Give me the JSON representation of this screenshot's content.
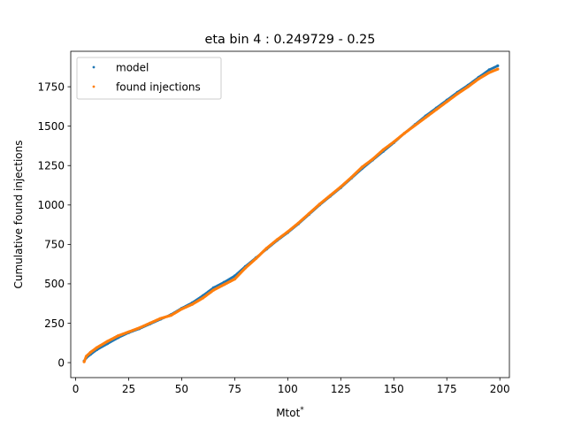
{
  "chart_data": {
    "type": "scatter",
    "title": "eta bin 4 : 0.249729 - 0.25",
    "xlabel": "Mtot",
    "xlabel_superscript": "*",
    "ylabel": "Cumulative found injections",
    "xlim": [
      -2.3,
      204.5
    ],
    "ylim": [
      -95,
      1975
    ],
    "xticks": [
      0,
      25,
      50,
      75,
      100,
      125,
      150,
      175,
      200
    ],
    "yticks": [
      0,
      250,
      500,
      750,
      1000,
      1250,
      1500,
      1750
    ],
    "xtick_labels": [
      "0",
      "25",
      "50",
      "75",
      "100",
      "125",
      "150",
      "175",
      "200"
    ],
    "ytick_labels": [
      "0",
      "250",
      "500",
      "750",
      "1000",
      "1250",
      "1500",
      "1750"
    ],
    "grid": false,
    "legend_position": "top-left",
    "series": [
      {
        "name": "model",
        "color": "#1f77b4",
        "x": [
          4,
          5,
          7,
          10,
          15,
          20,
          25,
          30,
          35,
          40,
          45,
          50,
          55,
          60,
          65,
          70,
          75,
          80,
          85,
          90,
          95,
          100,
          105,
          110,
          115,
          120,
          125,
          130,
          135,
          140,
          145,
          150,
          155,
          160,
          165,
          170,
          175,
          180,
          185,
          190,
          195,
          199
        ],
        "y": [
          10,
          30,
          52,
          82,
          120,
          158,
          190,
          215,
          245,
          275,
          305,
          345,
          380,
          425,
          475,
          510,
          550,
          610,
          665,
          720,
          775,
          825,
          880,
          940,
          1000,
          1055,
          1110,
          1170,
          1230,
          1285,
          1340,
          1395,
          1455,
          1510,
          1565,
          1615,
          1665,
          1715,
          1760,
          1810,
          1858,
          1883
        ]
      },
      {
        "name": "found injections",
        "color": "#ff7f0e",
        "x": [
          4,
          5,
          7,
          10,
          15,
          20,
          25,
          30,
          35,
          40,
          45,
          50,
          55,
          60,
          65,
          70,
          75,
          80,
          85,
          90,
          95,
          100,
          105,
          110,
          115,
          120,
          125,
          130,
          135,
          140,
          145,
          150,
          155,
          160,
          165,
          170,
          175,
          180,
          185,
          190,
          195,
          199
        ],
        "y": [
          5,
          40,
          65,
          95,
          135,
          170,
          195,
          220,
          250,
          280,
          300,
          340,
          370,
          410,
          460,
          495,
          530,
          600,
          660,
          725,
          780,
          830,
          885,
          945,
          1005,
          1060,
          1115,
          1175,
          1240,
          1290,
          1350,
          1400,
          1455,
          1505,
          1555,
          1605,
          1655,
          1705,
          1750,
          1800,
          1840,
          1862
        ]
      }
    ]
  }
}
